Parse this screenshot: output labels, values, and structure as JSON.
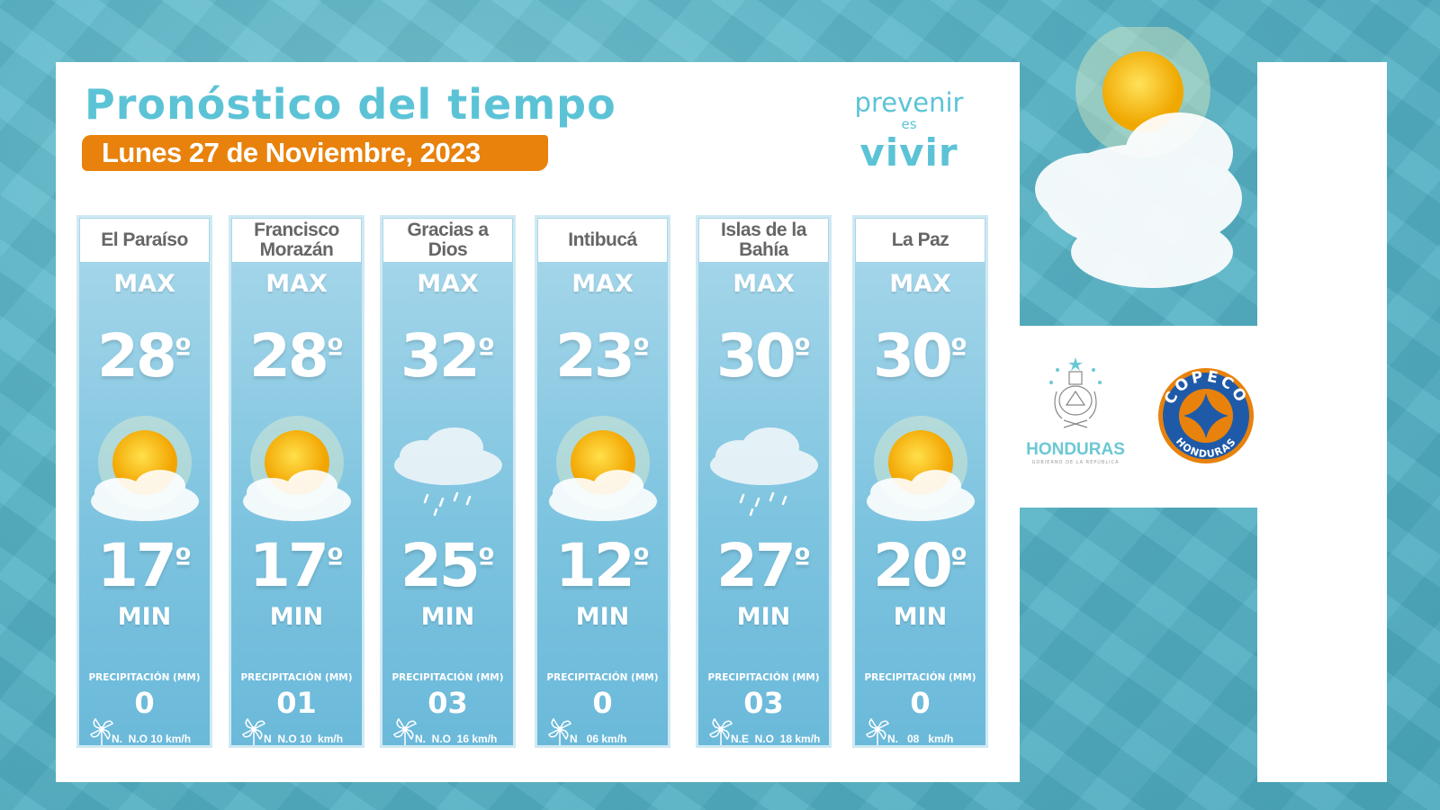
{
  "header": {
    "title": "Pronóstico del tiempo",
    "date": "Lunes 27 de Noviembre, 2023"
  },
  "logo": {
    "line1": "prevenir",
    "line2": "es",
    "line3": "vivir"
  },
  "labels": {
    "max": "MAX",
    "min": "MIN",
    "precip": "PRECIPITACIÓN (MM)",
    "degree": "º"
  },
  "colors": {
    "accent_teal": "#5cc3d6",
    "date_orange": "#e8820c",
    "card_blue": "#7cc3df"
  },
  "cards": [
    {
      "name": "El Paraíso",
      "max": "28",
      "min": "17",
      "precip": "0",
      "wind": "N.  N.O 10 km/h",
      "icon": "sun-cloud-icon"
    },
    {
      "name": "Francisco Morazán",
      "max": "28",
      "min": "17",
      "precip": "01",
      "wind": "N  N.O 10  km/h",
      "icon": "sun-cloud-icon"
    },
    {
      "name": "Gracias a Dios",
      "max": "32",
      "min": "25",
      "precip": "03",
      "wind": "N.  N.O  16 km/h",
      "icon": "rain-cloud-icon"
    },
    {
      "name": "Intibucá",
      "max": "23",
      "min": "12",
      "precip": "0",
      "wind": "N   06 km/h",
      "icon": "sun-cloud-icon"
    },
    {
      "name": "Islas de la Bahía",
      "max": "30",
      "min": "27",
      "precip": "03",
      "wind": "N.E  N.O  18 km/h",
      "icon": "rain-cloud-icon"
    },
    {
      "name": "La Paz",
      "max": "30",
      "min": "20",
      "precip": "0",
      "wind": "N.   08   km/h",
      "icon": "sun-cloud-icon"
    }
  ],
  "partners": {
    "gov_name": "HONDURAS",
    "gov_sub": "GOBIERNO DE LA REPÚBLICA",
    "copeco_top": "COPECO",
    "copeco_bottom": "HONDURAS"
  }
}
